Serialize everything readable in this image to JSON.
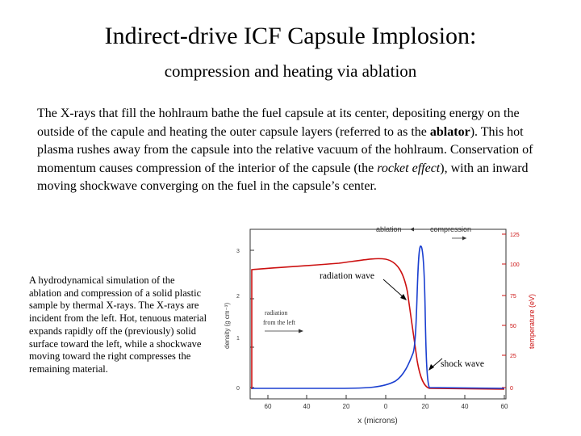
{
  "slide": {
    "title": "Indirect-drive ICF Capsule Implosion:",
    "subtitle": "compression and heating via ablation",
    "paragraph": {
      "p1": "The X-rays that fill the hohlraum bathe the fuel capsule at its center, depositing energy on the outside of the capule and heating the outer capsule layers (referred to as the ",
      "p2": "ablator",
      "p3": ").  This hot plasma rushes away from the capsule into the relative vacuum of the hohlraum.  Conservation of momentum causes compression of the interior of the capsule (the ",
      "p4": "rocket effect",
      "p5": "), with an inward moving shockwave converging on the fuel in the capsule’s center."
    },
    "caption": "A hydrodynamical simulation of the ablation and compression of a solid plastic sample by thermal X-rays. The X-rays are incident from the left. Hot, tenuous material expands rapidly off the (previously) solid surface toward the left, while a shockwave moving toward the right compresses the remaining material."
  },
  "figure": {
    "annotations": {
      "ablation": "ablation",
      "compression": "compression",
      "radiation_wave": "radiation wave",
      "radiation_from_left_1": "radiation",
      "radiation_from_left_2": "from the left",
      "shock_wave": "shock wave"
    },
    "xlabel": "x (microns)",
    "ylabel_left": "density (g cm⁻³)",
    "ylabel_right": "temperature (eV)",
    "x_ticks": [
      "60",
      "40",
      "20",
      "0",
      "20",
      "40",
      "60"
    ],
    "y_left_ticks": [
      "0",
      "1",
      "2",
      "3"
    ],
    "y_right_ticks": [
      "0",
      "25",
      "50",
      "75",
      "100",
      "125"
    ],
    "colors": {
      "density": "#1a3fd0",
      "temperature": "#cc1111",
      "axis": "#333333"
    }
  }
}
